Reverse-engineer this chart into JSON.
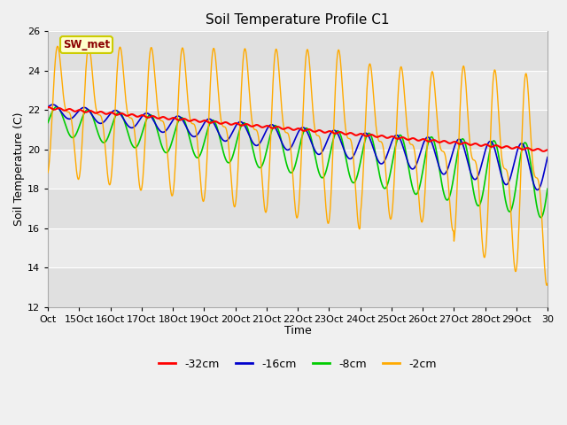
{
  "title": "Soil Temperature Profile C1",
  "xlabel": "Time",
  "ylabel": "Soil Temperature (C)",
  "ylim": [
    12,
    26
  ],
  "yticks": [
    12,
    14,
    16,
    18,
    20,
    22,
    24,
    26
  ],
  "annotation_label": "SW_met",
  "annotation_box_color": "#ffffcc",
  "annotation_text_color": "#8b0000",
  "annotation_border_color": "#cccc00",
  "legend_labels": [
    "-32cm",
    "-16cm",
    "-8cm",
    "-2cm"
  ],
  "legend_colors": [
    "#ff0000",
    "#0000cc",
    "#00cc00",
    "#ffaa00"
  ],
  "bg_color": "#f0f0f0",
  "plot_bg_color": "#e8e8e8",
  "grid_color": "#ffffff",
  "x_tick_labels": [
    "Oct",
    "15Oct",
    "16Oct",
    "17Oct",
    "18Oct",
    "19Oct",
    "20Oct",
    "21Oct",
    "22Oct",
    "23Oct",
    "24Oct",
    "25Oct",
    "26Oct",
    "27Oct",
    "28Oct",
    "29Oct",
    "30"
  ],
  "num_points": 1000,
  "figsize": [
    6.4,
    4.8
  ],
  "dpi": 100
}
